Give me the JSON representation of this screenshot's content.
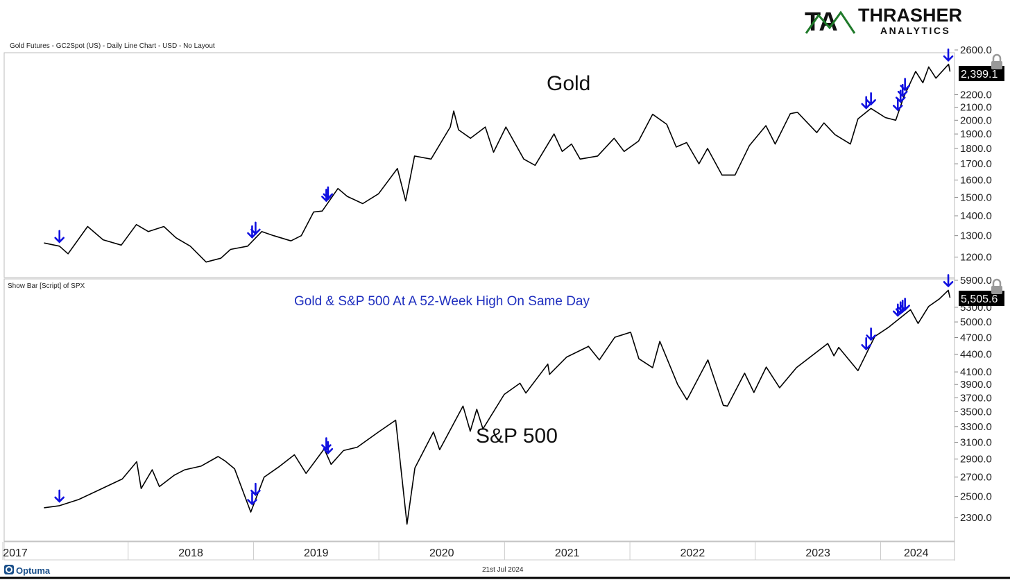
{
  "header": {
    "series_description": "Gold Futures - GC2Spot (US) - Daily Line Chart - USD - No Layout",
    "lower_series_description": "Show Bar [Script] of SPX"
  },
  "logo": {
    "mark": "TA",
    "word": "THRASHER",
    "sub": "ANALYTICS"
  },
  "footer": {
    "brand": "Optuma",
    "date": "21st Jul 2024"
  },
  "colors": {
    "line": "#000000",
    "marker": "#1010e0",
    "accent_green": "#1f7a2a",
    "price_bg": "#000000",
    "annotation": "#1f2fbf"
  },
  "chart_data": [
    {
      "type": "line",
      "title": "Gold",
      "series": [
        {
          "name": "Gold",
          "x": [
            "2017-05-01",
            "2017-06-15",
            "2017-07-10",
            "2017-09-05",
            "2017-10-20",
            "2017-12-12",
            "2018-01-25",
            "2018-03-01",
            "2018-04-15",
            "2018-05-20",
            "2018-07-01",
            "2018-08-16",
            "2018-09-28",
            "2018-10-26",
            "2018-12-15",
            "2019-01-25",
            "2019-03-01",
            "2019-04-20",
            "2019-05-20",
            "2019-06-25",
            "2019-07-20",
            "2019-09-04",
            "2019-10-01",
            "2019-11-15",
            "2019-12-31",
            "2020-02-24",
            "2020-03-19",
            "2020-04-14",
            "2020-06-01",
            "2020-07-27",
            "2020-08-06",
            "2020-08-20",
            "2020-09-24",
            "2020-11-06",
            "2020-11-30",
            "2021-01-05",
            "2021-02-26",
            "2021-03-31",
            "2021-05-25",
            "2021-06-18",
            "2021-07-15",
            "2021-08-09",
            "2021-09-29",
            "2021-11-16",
            "2021-12-15",
            "2022-01-26",
            "2022-03-08",
            "2022-04-18",
            "2022-05-16",
            "2022-06-15",
            "2022-07-21",
            "2022-08-15",
            "2022-09-26",
            "2022-11-03",
            "2022-12-15",
            "2023-02-01",
            "2023-02-28",
            "2023-04-13",
            "2023-05-04",
            "2023-06-29",
            "2023-07-20",
            "2023-08-21",
            "2023-10-05",
            "2023-10-27",
            "2023-12-04",
            "2024-01-15",
            "2024-02-14",
            "2024-03-08",
            "2024-04-12",
            "2024-05-03",
            "2024-05-20",
            "2024-06-10",
            "2024-07-17",
            "2024-07-21"
          ],
          "values": [
            1265,
            1250,
            1215,
            1345,
            1280,
            1255,
            1355,
            1320,
            1345,
            1290,
            1250,
            1178,
            1195,
            1235,
            1250,
            1320,
            1300,
            1275,
            1300,
            1420,
            1425,
            1550,
            1505,
            1465,
            1520,
            1670,
            1480,
            1750,
            1730,
            1950,
            2070,
            1930,
            1870,
            1950,
            1775,
            1950,
            1730,
            1690,
            1900,
            1780,
            1830,
            1730,
            1750,
            1870,
            1780,
            1850,
            2045,
            1970,
            1810,
            1840,
            1700,
            1800,
            1630,
            1630,
            1820,
            1960,
            1830,
            2050,
            2060,
            1910,
            1980,
            1895,
            1830,
            2010,
            2090,
            2020,
            2000,
            2180,
            2400,
            2300,
            2440,
            2340,
            2465,
            2399
          ]
        }
      ],
      "ylim": [
        1150,
        2600
      ],
      "yticks": [
        "1200.0",
        "1300.0",
        "1400.0",
        "1500.0",
        "1600.0",
        "1700.0",
        "1800.0",
        "1900.0",
        "2000.0",
        "2100.0",
        "2200.0",
        "2600.0"
      ],
      "last_value": "2,399.1",
      "scale": "log"
    },
    {
      "type": "line",
      "title": "S&P 500",
      "annotation": "Gold & S&P 500 At A 52-Week High On Same Day",
      "series": [
        {
          "name": "S&P 500",
          "x": [
            "2017-05-01",
            "2017-06-15",
            "2017-08-10",
            "2017-10-05",
            "2017-12-15",
            "2018-01-26",
            "2018-02-08",
            "2018-03-12",
            "2018-04-02",
            "2018-05-15",
            "2018-06-15",
            "2018-08-01",
            "2018-09-20",
            "2018-10-10",
            "2018-11-07",
            "2018-12-24",
            "2019-02-01",
            "2019-03-15",
            "2019-04-30",
            "2019-06-03",
            "2019-07-26",
            "2019-08-15",
            "2019-09-20",
            "2019-10-30",
            "2019-12-31",
            "2020-02-19",
            "2020-03-23",
            "2020-04-15",
            "2020-06-08",
            "2020-06-26",
            "2020-09-02",
            "2020-09-23",
            "2020-10-12",
            "2020-10-30",
            "2020-12-31",
            "2021-02-15",
            "2021-03-04",
            "2021-05-07",
            "2021-05-12",
            "2021-07-01",
            "2021-08-31",
            "2021-09-02",
            "2021-10-04",
            "2021-11-18",
            "2022-01-03",
            "2022-01-27",
            "2022-03-08",
            "2022-03-29",
            "2022-05-20",
            "2022-06-16",
            "2022-08-16",
            "2022-09-30",
            "2022-10-12",
            "2022-12-01",
            "2022-12-28",
            "2023-02-02",
            "2023-03-13",
            "2023-05-01",
            "2023-07-31",
            "2023-08-18",
            "2023-09-01",
            "2023-10-27",
            "2023-12-15",
            "2024-01-25",
            "2024-03-28",
            "2024-04-19",
            "2024-05-20",
            "2024-06-20",
            "2024-07-16",
            "2024-07-21"
          ],
          "values": [
            2390,
            2410,
            2470,
            2560,
            2680,
            2870,
            2580,
            2780,
            2600,
            2720,
            2780,
            2820,
            2930,
            2880,
            2790,
            2350,
            2700,
            2810,
            2950,
            2740,
            3020,
            2840,
            3000,
            3040,
            3230,
            3385,
            2240,
            2800,
            3230,
            3010,
            3580,
            3240,
            3535,
            3270,
            3750,
            3920,
            3770,
            4230,
            4060,
            4350,
            4530,
            4540,
            4300,
            4705,
            4800,
            4320,
            4170,
            4630,
            3900,
            3670,
            4300,
            3590,
            3580,
            4080,
            3780,
            4180,
            3850,
            4170,
            4590,
            4370,
            4520,
            4120,
            4720,
            4900,
            5250,
            4970,
            5320,
            5480,
            5670,
            5505
          ]
        }
      ],
      "ylim": [
        2200,
        5900
      ],
      "yticks": [
        "2300.0",
        "2500.0",
        "2700.0",
        "2900.0",
        "3100.0",
        "3300.0",
        "3500.0",
        "3700.0",
        "3900.0",
        "4100.0",
        "4400.0",
        "4700.0",
        "5000.0",
        "5300.0",
        "5900.0"
      ],
      "last_value": "5,505.6",
      "scale": "log"
    },
    {
      "type": "scatter",
      "series": [
        {
          "x": [
            "2017-06-15",
            "2018-12-28",
            "2019-01-07",
            "2019-08-01",
            "2019-08-06",
            "2023-11-20",
            "2023-12-04",
            "2024-02-20",
            "2024-02-28",
            "2024-03-05",
            "2024-03-12",
            "2024-07-16"
          ]
        }
      ]
    }
  ],
  "x_axis": {
    "ticks": [
      "2017",
      "2018",
      "2019",
      "2020",
      "2021",
      "2022",
      "2023",
      "2024"
    ]
  }
}
